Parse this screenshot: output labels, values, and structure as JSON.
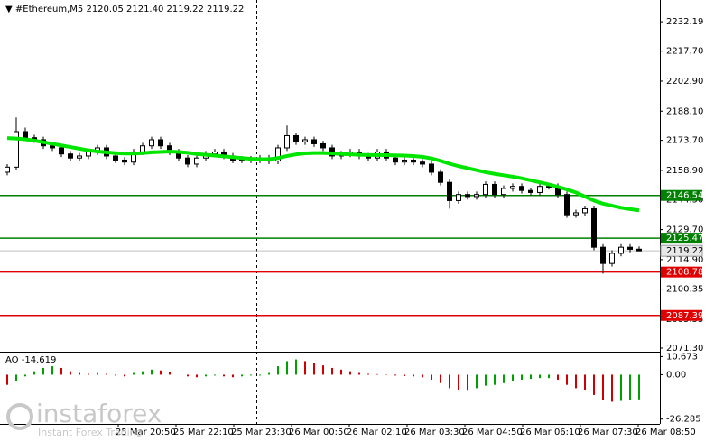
{
  "chart_data": {
    "type": "candlestick",
    "title": "#Ethereum,M5  2120.05 2121.40 2119.22 2119.22",
    "open": [
      2158,
      2160.5,
      2178,
      2175,
      2174,
      2171,
      2170,
      2167,
      2165,
      2166,
      2168,
      2170,
      2166,
      2164,
      2163,
      2168,
      2171,
      2174,
      2171,
      2168,
      2165,
      2162,
      2165,
      2167,
      2168,
      2166,
      2164,
      2164.5,
      2164,
      2165,
      2163.5,
      2170,
      2176,
      2173,
      2174,
      2172,
      2170,
      2166,
      2167,
      2168,
      2166,
      2165,
      2168,
      2165,
      2163,
      2164,
      2163,
      2162,
      2158,
      2153,
      2144,
      2147,
      2146,
      2147,
      2152,
      2147,
      2150,
      2151,
      2149,
      2148,
      2151,
      2151,
      2147,
      2137,
      2138,
      2140,
      2121,
      2113,
      2118,
      2121,
      2120.05
    ],
    "high": [
      2162,
      2185,
      2180,
      2176.5,
      2175.5,
      2172.5,
      2171.5,
      2168.5,
      2167.5,
      2169.5,
      2171.5,
      2171.5,
      2167.5,
      2165.5,
      2169.5,
      2172.5,
      2175.5,
      2175.5,
      2172.5,
      2169.5,
      2166.5,
      2166.5,
      2168.5,
      2169.5,
      2169.5,
      2167.5,
      2166,
      2166,
      2166.5,
      2166.5,
      2171.5,
      2181,
      2177.5,
      2175.5,
      2175.5,
      2173.5,
      2171.5,
      2168.5,
      2169.5,
      2169.5,
      2167.5,
      2169.5,
      2169.5,
      2166.5,
      2165.5,
      2165.5,
      2164.5,
      2163.5,
      2159.5,
      2154.5,
      2148.5,
      2148.5,
      2148.5,
      2153.5,
      2153.5,
      2151.5,
      2152.5,
      2152.5,
      2150.5,
      2152.5,
      2152.5,
      2152.5,
      2148.5,
      2139.5,
      2141.5,
      2141.5,
      2122.5,
      2119.5,
      2122.5,
      2122.5,
      2121.4
    ],
    "low": [
      2156.5,
      2159,
      2173.5,
      2172.5,
      2169.5,
      2168.5,
      2165.5,
      2163.5,
      2163.5,
      2164.5,
      2166.5,
      2164.5,
      2162.5,
      2161.5,
      2161.5,
      2166.5,
      2169.5,
      2169.5,
      2166.5,
      2163.5,
      2160.5,
      2160.5,
      2163.5,
      2165.5,
      2164.5,
      2162.5,
      2162.5,
      2162.5,
      2162.5,
      2162,
      2162,
      2168.5,
      2171.5,
      2171.5,
      2170.5,
      2168.5,
      2164.5,
      2164.5,
      2165.5,
      2164.5,
      2163.5,
      2163.5,
      2163.5,
      2161.5,
      2161.5,
      2161.5,
      2160.5,
      2156.5,
      2151.5,
      2140,
      2142.5,
      2144.5,
      2144.5,
      2145.5,
      2145.5,
      2145.5,
      2148.5,
      2147.5,
      2146.5,
      2146.5,
      2149.5,
      2145.5,
      2135.5,
      2135.5,
      2136.5,
      2119.5,
      2108,
      2111.5,
      2116.5,
      2118.5,
      2119.22
    ],
    "close": [
      2160.5,
      2178,
      2175,
      2174,
      2171,
      2170,
      2167,
      2165,
      2166,
      2168,
      2170,
      2166,
      2164,
      2163,
      2168,
      2171,
      2174,
      2171,
      2168,
      2165,
      2162,
      2165,
      2167,
      2168,
      2166,
      2164,
      2164.5,
      2164,
      2165,
      2163.5,
      2170,
      2176,
      2173,
      2174,
      2172,
      2170,
      2166,
      2167,
      2168,
      2166,
      2165,
      2168,
      2165,
      2163,
      2164,
      2163,
      2162,
      2158,
      2153,
      2144,
      2147,
      2146,
      2147,
      2152,
      2147,
      2150,
      2151,
      2149,
      2148,
      2151,
      2151,
      2147,
      2137,
      2138,
      2140,
      2121,
      2113,
      2118,
      2121,
      2120,
      2119.22
    ],
    "candle_color": "#000000",
    "ylim": [
      2069.5,
      2242.9
    ],
    "yticks": [
      2232.19,
      {
        "value": 2217.7,
        "label": "2217.70"
      },
      {
        "value": 2202.9,
        "label": "2202.90"
      },
      {
        "value": 2188.1,
        "label": "2188.10"
      },
      {
        "value": 2173.7,
        "label": "2173.70"
      },
      {
        "value": 2158.9,
        "label": "2158.90"
      },
      {
        "value": 2144.5,
        "label": "2144.50"
      },
      {
        "value": 2129.7,
        "label": "2129.70"
      },
      {
        "value": 2114.9,
        "label": "2114.90"
      },
      2100.35,
      2085.55,
      {
        "value": 2071.3,
        "label": "2071.30"
      }
    ],
    "x_labels": [
      "25 Mar 20:50",
      "25 Mar 22:10",
      "25 Mar 23:30",
      "26 Mar 00:50",
      "26 Mar 02:10",
      "26 Mar 03:30",
      "26 Mar 04:50",
      "26 Mar 06:10",
      "26 Mar 07:30",
      "26 Mar 08:50"
    ],
    "levels": [
      {
        "value": 2146.54,
        "color": "#008000"
      },
      {
        "value": 2125.47,
        "color": "#008000"
      },
      {
        "value": 2108.78,
        "color": "#e00000"
      },
      {
        "value": 2087.39,
        "color": "#e00000"
      }
    ],
    "ma": {
      "color": "#00e600",
      "values": [
        2174.8,
        2174.6,
        2174.2,
        2173.6,
        2172.8,
        2172,
        2171.2,
        2170.4,
        2169.6,
        2168.8,
        2168.2,
        2167.8,
        2167.4,
        2167.2,
        2167.2,
        2167.4,
        2167.8,
        2168,
        2168.2,
        2168,
        2167.6,
        2167,
        2166.6,
        2166.2,
        2165.8,
        2165.4,
        2165,
        2164.6,
        2164.4,
        2164.4,
        2165,
        2166,
        2166.8,
        2167.3,
        2167.5,
        2167.5,
        2167.3,
        2167,
        2166.8,
        2166.6,
        2166.5,
        2166.5,
        2166.4,
        2166.3,
        2166.2,
        2166,
        2165.6,
        2164.8,
        2163.6,
        2162.2,
        2161,
        2160,
        2159,
        2158,
        2157.2,
        2156.5,
        2155.8,
        2155,
        2154,
        2153,
        2152,
        2150.8,
        2149.5,
        2148,
        2146,
        2144,
        2142.5,
        2141.5,
        2140.5,
        2139.8,
        2139.2
      ]
    },
    "ao": {
      "name": "AO",
      "up_color": "#00a000",
      "down_color": "#d00000",
      "values": [
        -6,
        -4,
        -1,
        2,
        4,
        5,
        4,
        2,
        1,
        0.5,
        1,
        0.5,
        -0.5,
        -1,
        1,
        2,
        3,
        2.5,
        1.5,
        0,
        -1,
        -1.5,
        -1,
        -0.5,
        -1,
        -1.5,
        -1,
        -0.5,
        -0.5,
        1,
        5,
        8,
        9,
        8,
        7,
        5.5,
        4,
        3,
        2,
        1,
        0.5,
        0.3,
        -0.2,
        -0.5,
        -0.8,
        -1,
        -1.5,
        -3,
        -5,
        -8,
        -9,
        -9.5,
        -8,
        -6.5,
        -6,
        -5,
        -4,
        -3,
        -2.5,
        -2,
        -2,
        -3,
        -6,
        -8,
        -9,
        -12,
        -15,
        -16,
        -15.5,
        -15,
        -14.619
      ],
      "ylim": [
        -29.1,
        12.5
      ],
      "yticks": [
        10.673,
        {
          "value": 0,
          "label": "0.00"
        },
        -26.285
      ]
    }
  },
  "watermark": {
    "brand": "instaforex",
    "tagline": "Instant Forex Trading"
  }
}
